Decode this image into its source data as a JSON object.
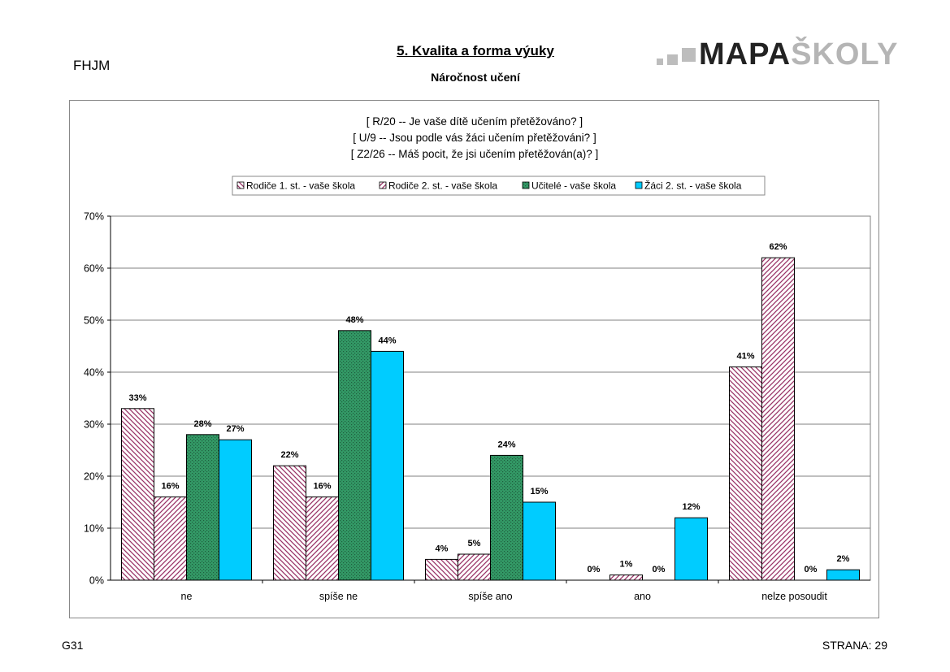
{
  "header": {
    "school_code": "FHJM",
    "title": "5. Kvalita a forma výuky",
    "subtitle": "Náročnost učení",
    "logo_part1": "MAPA",
    "logo_part2": "ŠKOLY"
  },
  "footer": {
    "left": "G31",
    "right": "STRANA: 29"
  },
  "colors": {
    "rodice1": "#993366",
    "rodice2": "#993366",
    "ucitele": "#339966",
    "zaci": "#00ccff"
  },
  "chart_data": {
    "type": "bar",
    "title_lines": [
      "[ R/20 -- Je vaše dítě učením přetěžováno? ]",
      "[ U/9 -- Jsou podle vás žáci učením přetěžováni? ]",
      "[ Z2/26 -- Máš pocit, že jsi učením přetěžován(a)? ]"
    ],
    "categories": [
      "ne",
      "spíše ne",
      "spíše ano",
      "ano",
      "nelze posoudit"
    ],
    "series": [
      {
        "name": "Rodiče 1. st. - vaše škola",
        "values": [
          33,
          22,
          4,
          0,
          41
        ],
        "labels": [
          "33%",
          "22%",
          "4%",
          "0%",
          "41%"
        ]
      },
      {
        "name": "Rodiče 2. st. - vaše škola",
        "values": [
          16,
          16,
          5,
          1,
          62
        ],
        "labels": [
          "16%",
          "16%",
          "5%",
          "1%",
          "62%"
        ]
      },
      {
        "name": "Učitelé - vaše škola",
        "values": [
          28,
          48,
          24,
          0,
          0
        ],
        "labels": [
          "28%",
          "48%",
          "24%",
          "0%",
          "0%"
        ]
      },
      {
        "name": "Žáci 2. st. - vaše škola",
        "values": [
          27,
          44,
          15,
          12,
          2
        ],
        "labels": [
          "27%",
          "44%",
          "15%",
          "12%",
          "2%"
        ]
      }
    ],
    "y_ticks": [
      "0%",
      "10%",
      "20%",
      "30%",
      "40%",
      "50%",
      "60%",
      "70%"
    ],
    "ylim": [
      0,
      70
    ],
    "grid": true,
    "legend_position": "top"
  }
}
